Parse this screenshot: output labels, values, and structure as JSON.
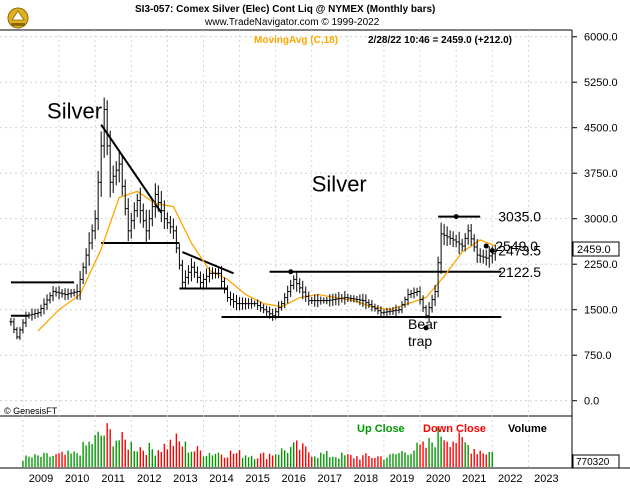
{
  "header": {
    "title": "SI3-057:  Comex Silver (Elec) Cont Liq @ NYMEX  (Monthly bars)",
    "source": "www.TradeNavigator.com © 1999-2022",
    "ma_label": "MovingAvg (C,18)",
    "quote": "2/28/22 10:46 = 2459.0 (+212.0)"
  },
  "copyright": "© GenesisFT",
  "volume_legend": {
    "up": "Up Close",
    "down": "Down Close",
    "volume": "Volume"
  },
  "volume_value": "770320",
  "colors": {
    "up_close": "#009900",
    "down_close": "#ff0000",
    "ma": "#ffa500",
    "price": "#000000"
  },
  "chart_data": {
    "type": "ohlc",
    "interval": "monthly",
    "x_ticks": [
      "2009",
      "2010",
      "2011",
      "2012",
      "2013",
      "2014",
      "2015",
      "2016",
      "2017",
      "2018",
      "2019",
      "2020",
      "2021",
      "2022",
      "2023"
    ],
    "y_ticks": [
      "6000.0",
      "5250.0",
      "4500.0",
      "3750.0",
      "3000.0",
      "2250.0",
      "1500.0",
      "750.0",
      "0.0"
    ],
    "ylim": [
      0,
      6000
    ],
    "last_price": "2459.0",
    "close_path": [
      [
        "2008-09",
        1300
      ],
      [
        "2008-11",
        1050
      ],
      [
        "2009-02",
        1400
      ],
      [
        "2009-06",
        1450
      ],
      [
        "2009-11",
        1800
      ],
      [
        "2010-03",
        1750
      ],
      [
        "2010-07",
        1800
      ],
      [
        "2010-10",
        2400
      ],
      [
        "2011-01",
        3000
      ],
      [
        "2011-04",
        4800
      ],
      [
        "2011-06",
        3600
      ],
      [
        "2011-09",
        3900
      ],
      [
        "2011-12",
        2800
      ],
      [
        "2012-03",
        3300
      ],
      [
        "2012-06",
        2800
      ],
      [
        "2012-09",
        3400
      ],
      [
        "2012-12",
        3000
      ],
      [
        "2013-03",
        2800
      ],
      [
        "2013-06",
        1950
      ],
      [
        "2013-09",
        2200
      ],
      [
        "2013-12",
        1950
      ],
      [
        "2014-03",
        2100
      ],
      [
        "2014-06",
        2100
      ],
      [
        "2014-09",
        1700
      ],
      [
        "2014-12",
        1600
      ],
      [
        "2015-06",
        1600
      ],
      [
        "2015-12",
        1400
      ],
      [
        "2016-03",
        1600
      ],
      [
        "2016-07",
        2000
      ],
      [
        "2016-12",
        1650
      ],
      [
        "2017-06",
        1650
      ],
      [
        "2017-12",
        1700
      ],
      [
        "2018-06",
        1650
      ],
      [
        "2018-12",
        1450
      ],
      [
        "2019-06",
        1500
      ],
      [
        "2019-09",
        1750
      ],
      [
        "2019-12",
        1800
      ],
      [
        "2020-03",
        1400
      ],
      [
        "2020-06",
        1800
      ],
      [
        "2020-08",
        2750
      ],
      [
        "2020-12",
        2650
      ],
      [
        "2021-03",
        2550
      ],
      [
        "2021-05",
        2800
      ],
      [
        "2021-08",
        2400
      ],
      [
        "2021-11",
        2350
      ],
      [
        "2022-02",
        2459
      ]
    ],
    "ma_path": [
      [
        "2009-06",
        1150
      ],
      [
        "2010-01",
        1500
      ],
      [
        "2010-08",
        1750
      ],
      [
        "2011-03",
        2500
      ],
      [
        "2011-09",
        3350
      ],
      [
        "2012-03",
        3450
      ],
      [
        "2012-09",
        3250
      ],
      [
        "2013-03",
        3200
      ],
      [
        "2013-09",
        2600
      ],
      [
        "2014-03",
        2150
      ],
      [
        "2014-09",
        2000
      ],
      [
        "2015-03",
        1750
      ],
      [
        "2015-09",
        1600
      ],
      [
        "2016-03",
        1550
      ],
      [
        "2016-09",
        1700
      ],
      [
        "2017-03",
        1750
      ],
      [
        "2017-09",
        1700
      ],
      [
        "2018-03",
        1650
      ],
      [
        "2018-09",
        1550
      ],
      [
        "2019-03",
        1500
      ],
      [
        "2019-09",
        1600
      ],
      [
        "2020-03",
        1700
      ],
      [
        "2020-09",
        2050
      ],
      [
        "2021-03",
        2450
      ],
      [
        "2021-09",
        2650
      ],
      [
        "2022-02",
        2550
      ]
    ],
    "volume_bars": [
      [
        "2009-01",
        15
      ],
      [
        "2009-06",
        18
      ],
      [
        "2010-01",
        20
      ],
      [
        "2010-06",
        22
      ],
      [
        "2010-11",
        40
      ],
      [
        "2011-03",
        55
      ],
      [
        "2011-05",
        60
      ],
      [
        "2011-10",
        45
      ],
      [
        "2012-03",
        35
      ],
      [
        "2012-09",
        30
      ],
      [
        "2013-04",
        45
      ],
      [
        "2013-09",
        30
      ],
      [
        "2014-03",
        25
      ],
      [
        "2014-09",
        25
      ],
      [
        "2015-03",
        22
      ],
      [
        "2015-09",
        20
      ],
      [
        "2016-03",
        28
      ],
      [
        "2016-08",
        35
      ],
      [
        "2017-03",
        22
      ],
      [
        "2017-09",
        20
      ],
      [
        "2018-03",
        18
      ],
      [
        "2018-09",
        18
      ],
      [
        "2019-03",
        18
      ],
      [
        "2019-09",
        30
      ],
      [
        "2020-03",
        35
      ],
      [
        "2020-08",
        60
      ],
      [
        "2021-02",
        45
      ],
      [
        "2021-08",
        30
      ],
      [
        "2022-01",
        25
      ]
    ],
    "annotations": [
      {
        "text": "Silver",
        "x": "2009-09",
        "y": 4650
      },
      {
        "text": "Silver",
        "x": "2017-01",
        "y": 3450
      },
      {
        "text": "3035.0",
        "x": "2022-01",
        "y": 3035
      },
      {
        "text": "2549.0",
        "x": "2021-12",
        "y": 2549
      },
      {
        "text": "2473.5",
        "x": "2022-01",
        "y": 2473.5
      },
      {
        "text": "2122.5",
        "x": "2022-01",
        "y": 2122.5
      },
      {
        "text": "Bear",
        "x": "2019-09",
        "y": 1180
      },
      {
        "text": "trap",
        "x": "2019-09",
        "y": 900
      }
    ],
    "levels": [
      {
        "from": "2008-09",
        "to": "2010-06",
        "y": 1950
      },
      {
        "from": "2008-09",
        "to": "2009-03",
        "y": 1400
      },
      {
        "from": "2011-03",
        "to": "2013-05",
        "y": 2600
      },
      {
        "from": "2013-05",
        "to": "2014-09",
        "y": 1850
      },
      {
        "from": "2014-07",
        "to": "2022-04",
        "y": 1380
      },
      {
        "from": "2015-11",
        "to": "2022-04",
        "y": 2125
      },
      {
        "from": "2020-07",
        "to": "2021-09",
        "y": 3035
      }
    ],
    "trendlines": [
      {
        "from": [
          "2011-03",
          4550
        ],
        "to": [
          "2012-11",
          3100
        ]
      },
      {
        "from": [
          "2013-06",
          2450
        ],
        "to": [
          "2014-11",
          2100
        ]
      }
    ]
  }
}
